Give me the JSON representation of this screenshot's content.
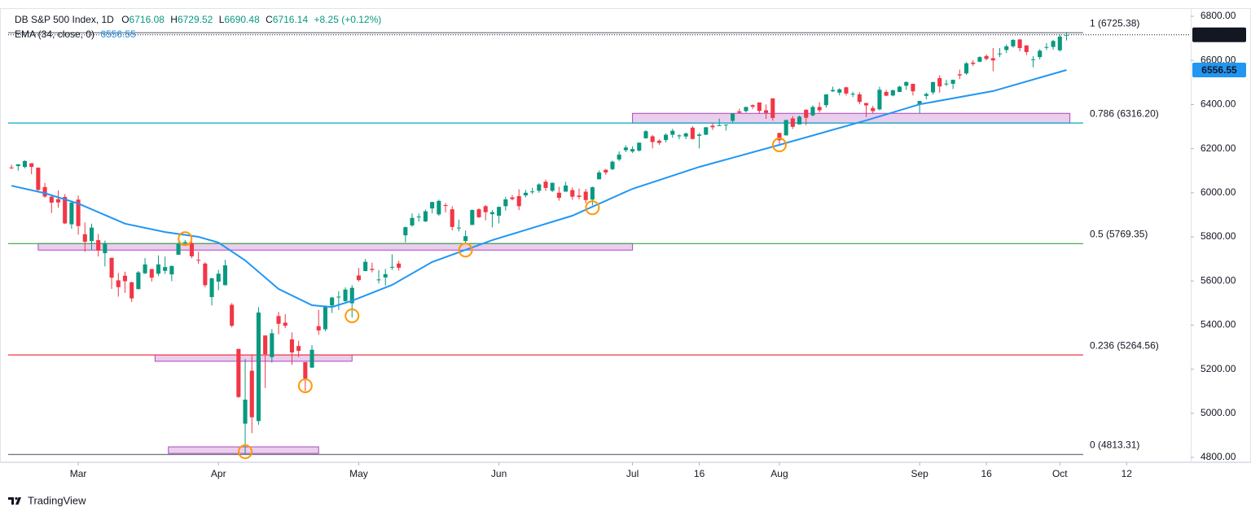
{
  "chart_data": {
    "type": "candlestick",
    "title": "DB S&P 500 Index, 1D",
    "ohlc_labels": [
      "O",
      "H",
      "L",
      "C"
    ],
    "change_label": "+8.25 (+0.12%)",
    "watermark": "TradingView",
    "up_color": "#089981",
    "down_color": "#f23645",
    "grid": false,
    "xlim": [
      -0.5,
      176.6
    ],
    "ylim": [
      4778,
      6837
    ],
    "xticks": [
      {
        "value": 10,
        "label": "Mar"
      },
      {
        "value": 31,
        "label": "Apr"
      },
      {
        "value": 52,
        "label": "May"
      },
      {
        "value": 73,
        "label": "Jun"
      },
      {
        "value": 93,
        "label": "Jul"
      },
      {
        "value": 103,
        "label": "16"
      },
      {
        "value": 115,
        "label": "Aug"
      },
      {
        "value": 136,
        "label": "Sep"
      },
      {
        "value": 146,
        "label": "16"
      },
      {
        "value": 157,
        "label": "Oct"
      },
      {
        "value": 167,
        "label": "12"
      }
    ],
    "yticks": [
      {
        "value": 4800,
        "label": "4800.00"
      },
      {
        "value": 5000,
        "label": "5000.00"
      },
      {
        "value": 5200,
        "label": "5200.00"
      },
      {
        "value": 5400,
        "label": "5400.00"
      },
      {
        "value": 5600,
        "label": "5600.00"
      },
      {
        "value": 5800,
        "label": "5800.00"
      },
      {
        "value": 6000,
        "label": "6000.00"
      },
      {
        "value": 6200,
        "label": "6200.00"
      },
      {
        "value": 6400,
        "label": "6400.00"
      },
      {
        "value": 6600,
        "label": "6600.00"
      },
      {
        "value": 6800,
        "label": "6800.00"
      }
    ],
    "open": [
      6115,
      6121,
      6117,
      6134,
      6114,
      6026,
      5982,
      5971,
      5981,
      5857,
      5969,
      5812,
      5781,
      5785,
      5726,
      5705,
      5603,
      5624,
      5594,
      5563,
      5635,
      5654,
      5633,
      5646,
      5630,
      5719,
      5776,
      5772,
      5696,
      5679,
      5527,
      5597,
      5581,
      5492,
      5292,
      4953,
      5193,
      4965,
      5353,
      5255,
      5441,
      5411,
      5335,
      5305,
      5232,
      5207,
      5395,
      5381,
      5489,
      5529,
      5509,
      5499,
      5625,
      5645,
      5655,
      5606,
      5616,
      5663,
      5679,
      5807,
      5852,
      5891,
      5870,
      5929,
      5902,
      5944,
      5925,
      5841,
      5781,
      5854,
      5925,
      5939,
      5903,
      5896,
      5939,
      5979,
      5985,
      5988,
      6005,
      6009,
      6050,
      6009,
      6000,
      6005,
      6012,
      5987,
      6005,
      5969,
      6061,
      6104,
      6107,
      6151,
      6193,
      6187,
      6191,
      6247,
      6256,
      6236,
      6239,
      6263,
      6256,
      6255,
      6295,
      6258,
      6263,
      6304,
      6305,
      6307,
      6326,
      6369,
      6370,
      6397,
      6409,
      6374,
      6428,
      6271,
      6260,
      6337,
      6310,
      6376,
      6351,
      6389,
      6397,
      6460,
      6454,
      6478,
      6445,
      6446,
      6407,
      6384,
      6378,
      6457,
      6441,
      6457,
      6485,
      6494,
      6401,
      6439,
      6455,
      6520,
      6494,
      6494,
      6537,
      6541,
      6590,
      6594,
      6620,
      6610,
      6630,
      6647,
      6664,
      6695,
      6668,
      6605,
      6615,
      6661,
      6661,
      6646,
      6716.08
    ],
    "high": [
      6127,
      6129,
      6147,
      6134,
      6114,
      6044,
      5992,
      6010,
      5994,
      5959,
      5987,
      5865,
      5860,
      5813,
      5783,
      5705,
      5636,
      5642,
      5597,
      5645,
      5704,
      5654,
      5716,
      5711,
      5670,
      5775,
      5786,
      5777,
      5733,
      5685,
      5615,
      5650,
      5696,
      5500,
      5292,
      5246,
      5267,
      5481,
      5353,
      5382,
      5460,
      5450,
      5367,
      5329,
      5232,
      5309,
      5469,
      5489,
      5528,
      5553,
      5571,
      5581,
      5659,
      5700,
      5683,
      5649,
      5655,
      5721,
      5691,
      5847,
      5906,
      5906,
      5924,
      5959,
      5969,
      5953,
      5939,
      5878,
      5829,
      5924,
      5930,
      5944,
      5922,
      5937,
      5982,
      5990,
      6016,
      6013,
      6022,
      6043,
      6060,
      6046,
      6027,
      6050,
      6024,
      6019,
      6018,
      6028,
      6101,
      6108,
      6146,
      6188,
      6215,
      6211,
      6228,
      6284,
      6262,
      6242,
      6269,
      6290,
      6265,
      6273,
      6302,
      6271,
      6298,
      6315,
      6336,
      6310,
      6360,
      6381,
      6390,
      6401,
      6410,
      6400,
      6428,
      6272,
      6330,
      6348,
      6350,
      6379,
      6396,
      6410,
      6446,
      6481,
      6474,
      6481,
      6458,
      6456,
      6407,
      6394,
      6481,
      6466,
      6467,
      6485,
      6505,
      6494,
      6416,
      6454,
      6502,
      6533,
      6512,
      6513,
      6558,
      6592,
      6601,
      6619,
      6627,
      6656,
      6656,
      6672,
      6696,
      6697,
      6668,
      6619,
      6651,
      6679,
      6693,
      6718,
      6729.52
    ],
    "low": [
      6107,
      6100,
      6111,
      6084,
      6009,
      5977,
      5908,
      5932,
      5858,
      5837,
      5810,
      5732,
      5742,
      5711,
      5666,
      5564,
      5529,
      5546,
      5505,
      5563,
      5631,
      5597,
      5622,
      5632,
      5599,
      5719,
      5764,
      5703,
      5678,
      5572,
      5489,
      5558,
      5580,
      5390,
      5070,
      4813,
      4910,
      4948,
      5115,
      5230,
      5358,
      5386,
      5220,
      5255,
      5101,
      5207,
      5356,
      5372,
      5455,
      5468,
      5505,
      5434,
      5597,
      5644,
      5639,
      5589,
      5579,
      5650,
      5647,
      5775,
      5846,
      5869,
      5867,
      5907,
      5895,
      5911,
      5829,
      5825,
      5767,
      5854,
      5886,
      5875,
      5843,
      5861,
      5919,
      5966,
      5921,
      5979,
      5994,
      6000,
      6008,
      6003,
      5964,
      6005,
      5968,
      5970,
      5952,
      5943,
      6061,
      6081,
      6102,
      6144,
      6184,
      6180,
      6187,
      6245,
      6201,
      6217,
      6228,
      6249,
      6243,
      6243,
      6242,
      6201,
      6262,
      6285,
      6303,
      6282,
      6317,
      6360,
      6364,
      6380,
      6358,
      6335,
      6327,
      6213,
      6260,
      6289,
      6310,
      6306,
      6346,
      6364,
      6386,
      6457,
      6442,
      6441,
      6434,
      6401,
      6343,
      6361,
      6374,
      6438,
      6437,
      6456,
      6466,
      6441,
      6360,
      6423,
      6445,
      6454,
      6484,
      6470,
      6515,
      6535,
      6575,
      6592,
      6600,
      6551,
      6615,
      6633,
      6658,
      6641,
      6624,
      6569,
      6604,
      6647,
      6649,
      6640,
      6690.48
    ],
    "close": [
      6114,
      6129,
      6144,
      6117,
      6013,
      5983,
      5955,
      5956,
      5861,
      5955,
      5849,
      5778,
      5842,
      5738,
      5770,
      5615,
      5572,
      5599,
      5521,
      5639,
      5675,
      5615,
      5675,
      5663,
      5668,
      5768,
      5777,
      5712,
      5693,
      5581,
      5612,
      5633,
      5671,
      5397,
      5074,
      5062,
      4982,
      5457,
      5268,
      5363,
      5406,
      5397,
      5276,
      5283,
      5158,
      5288,
      5376,
      5485,
      5525,
      5529,
      5561,
      5569,
      5604,
      5687,
      5650,
      5607,
      5631,
      5664,
      5660,
      5844,
      5886,
      5892,
      5916,
      5958,
      5963,
      5940,
      5845,
      5842,
      5803,
      5922,
      5889,
      5912,
      5912,
      5936,
      5970,
      5971,
      5939,
      6000,
      6006,
      6038,
      6022,
      6045,
      5977,
      6033,
      5982,
      5981,
      5967,
      6025,
      6092,
      6092,
      6141,
      6173,
      6205,
      6198,
      6227,
      6279,
      6230,
      6226,
      6263,
      6281,
      6260,
      6269,
      6244,
      6264,
      6297,
      6297,
      6306,
      6309,
      6359,
      6363,
      6389,
      6390,
      6371,
      6362,
      6339,
      6238,
      6330,
      6299,
      6345,
      6340,
      6389,
      6374,
      6446,
      6466,
      6469,
      6450,
      6449,
      6412,
      6396,
      6370,
      6467,
      6440,
      6465,
      6481,
      6502,
      6460,
      6416,
      6448,
      6502,
      6482,
      6495,
      6512,
      6532,
      6587,
      6584,
      6615,
      6607,
      6600,
      6631,
      6664,
      6693,
      6656,
      6638,
      6605,
      6644,
      6661,
      6688,
      6707.89,
      6716.14
    ],
    "ema": {
      "name": "EMA (34, close, 0)",
      "color": "#2196f3",
      "x": [
        0,
        5,
        10,
        17,
        23,
        28,
        31,
        35,
        40,
        45,
        48,
        51,
        57,
        63,
        72,
        84,
        93,
        103,
        115,
        128,
        136,
        147,
        158
      ],
      "values": [
        6032,
        5998,
        5951,
        5860,
        5822,
        5800,
        5774,
        5693,
        5564,
        5490,
        5482,
        5510,
        5582,
        5686,
        5785,
        5896,
        6018,
        6117,
        6217,
        6328,
        6401,
        6461,
        6556.55
      ]
    },
    "fib_levels": [
      {
        "label": "1 (6725.38)",
        "value": 6725.38,
        "color": "#787b86"
      },
      {
        "label": "0.786 (6316.20)",
        "value": 6316.2,
        "color": "#00acc1"
      },
      {
        "label": "0.5 (5769.35)",
        "value": 5769.35,
        "color": "#4caf50"
      },
      {
        "label": "0.236 (5264.56)",
        "value": 5264.56,
        "color": "#f23645"
      },
      {
        "label": "0 (4813.31)",
        "value": 4813.31,
        "color": "#787b86"
      }
    ],
    "zones": [
      {
        "x": [
          4,
          93
        ],
        "y": [
          5740,
          5770
        ]
      },
      {
        "x": [
          21.5,
          51
        ],
        "y": [
          5236,
          5265
        ]
      },
      {
        "x": [
          23.5,
          46
        ],
        "y": [
          4818,
          4848
        ]
      },
      {
        "x": [
          93,
          158.5
        ],
        "y": [
          6316,
          6360
        ]
      }
    ],
    "zone_color": "#ce93d8",
    "markers": [
      {
        "x": 26,
        "y": 5792
      },
      {
        "x": 35,
        "y": 4826
      },
      {
        "x": 44,
        "y": 5125
      },
      {
        "x": 51,
        "y": 5442
      },
      {
        "x": 68,
        "y": 5740
      },
      {
        "x": 87,
        "y": 5932
      },
      {
        "x": 115,
        "y": 6217
      }
    ],
    "marker_color": "#ff9800"
  }
}
